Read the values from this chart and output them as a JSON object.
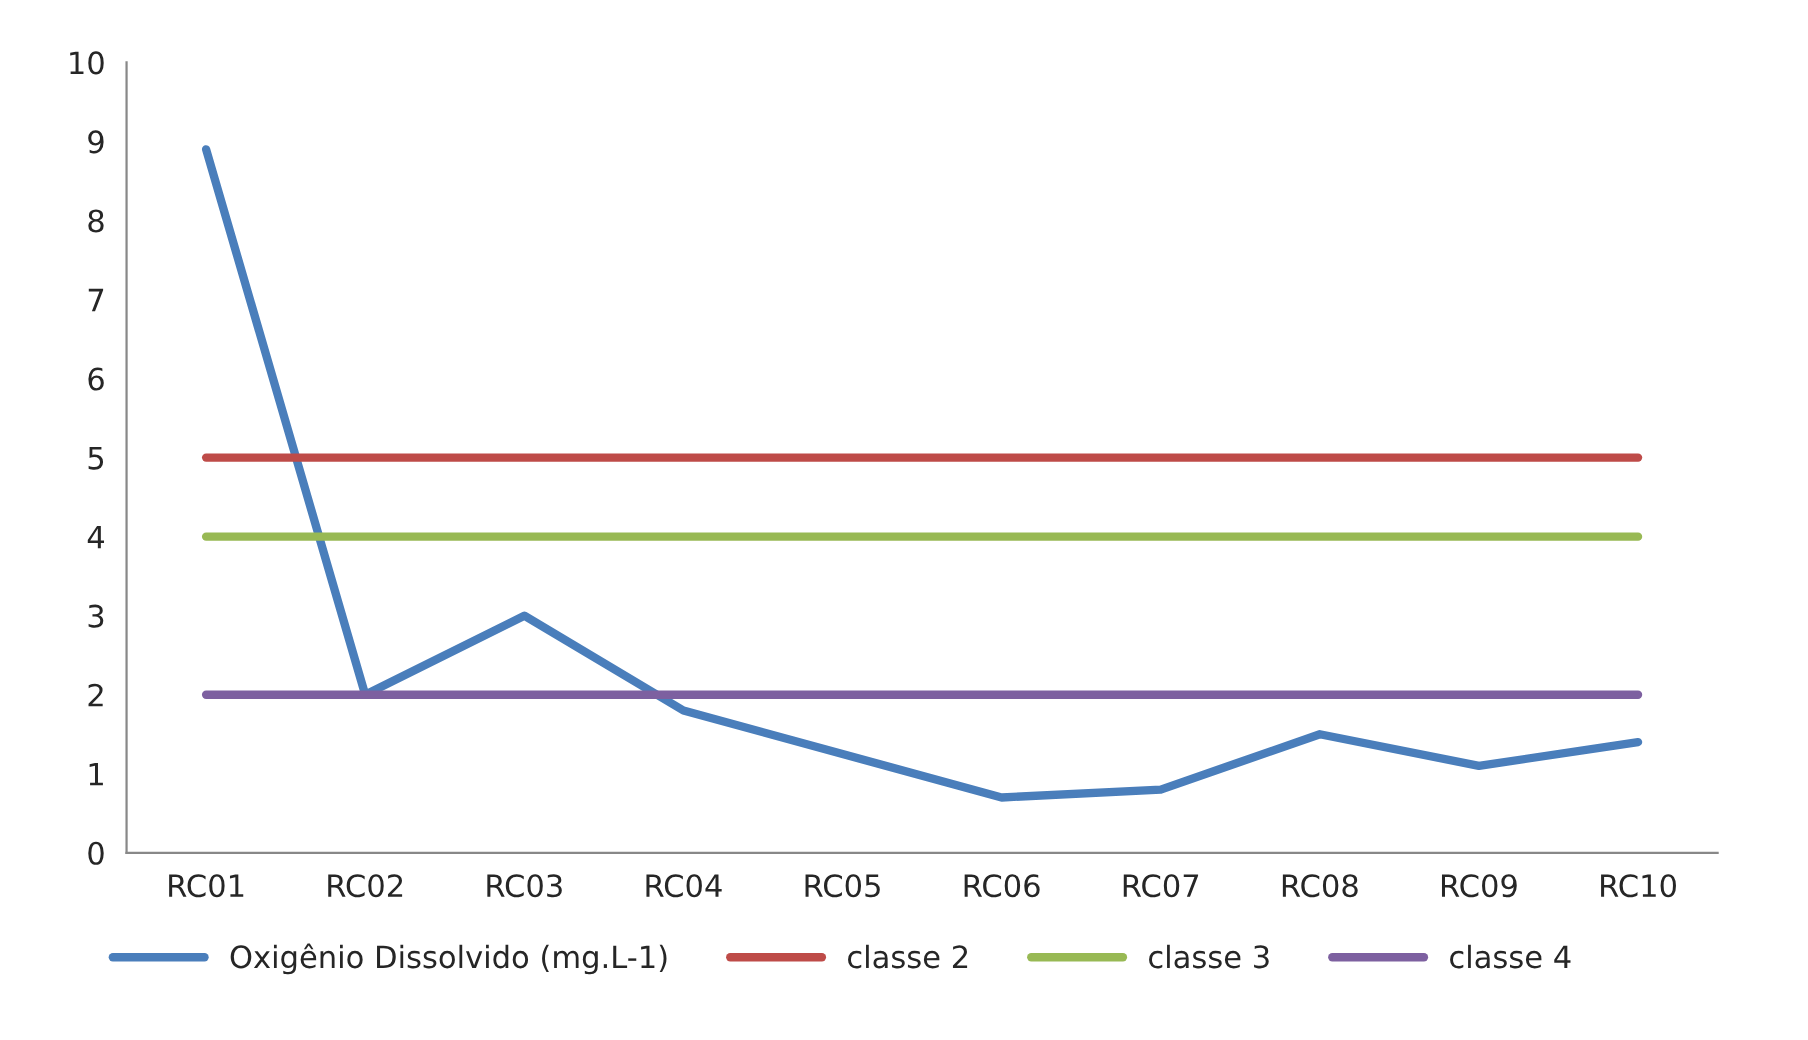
{
  "chart_data": {
    "type": "line",
    "categories": [
      "RC01",
      "RC02",
      "RC03",
      "RC04",
      "RC05",
      "RC06",
      "RC07",
      "RC08",
      "RC09",
      "RC10"
    ],
    "series": [
      {
        "name": "Oxigênio Dissolvido (mg.L-1)",
        "color": "#4a7ebb",
        "values": [
          8.9,
          2.0,
          3.0,
          1.8,
          1.25,
          0.7,
          0.8,
          1.5,
          1.1,
          1.4
        ]
      },
      {
        "name": "classe 2",
        "color": "#be4b48",
        "values": [
          5,
          5,
          5,
          5,
          5,
          5,
          5,
          5,
          5,
          5
        ]
      },
      {
        "name": "classe 3",
        "color": "#98b954",
        "values": [
          4,
          4,
          4,
          4,
          4,
          4,
          4,
          4,
          4,
          4
        ]
      },
      {
        "name": "classe 4",
        "color": "#7d60a0",
        "values": [
          2,
          2,
          2,
          2,
          2,
          2,
          2,
          2,
          2,
          2
        ]
      }
    ],
    "ylim": [
      0,
      10
    ],
    "yticks": [
      0,
      1,
      2,
      3,
      4,
      5,
      6,
      7,
      8,
      9,
      10
    ],
    "grid": false,
    "legend": "bottom",
    "marker": "none",
    "line_style": "solid"
  }
}
